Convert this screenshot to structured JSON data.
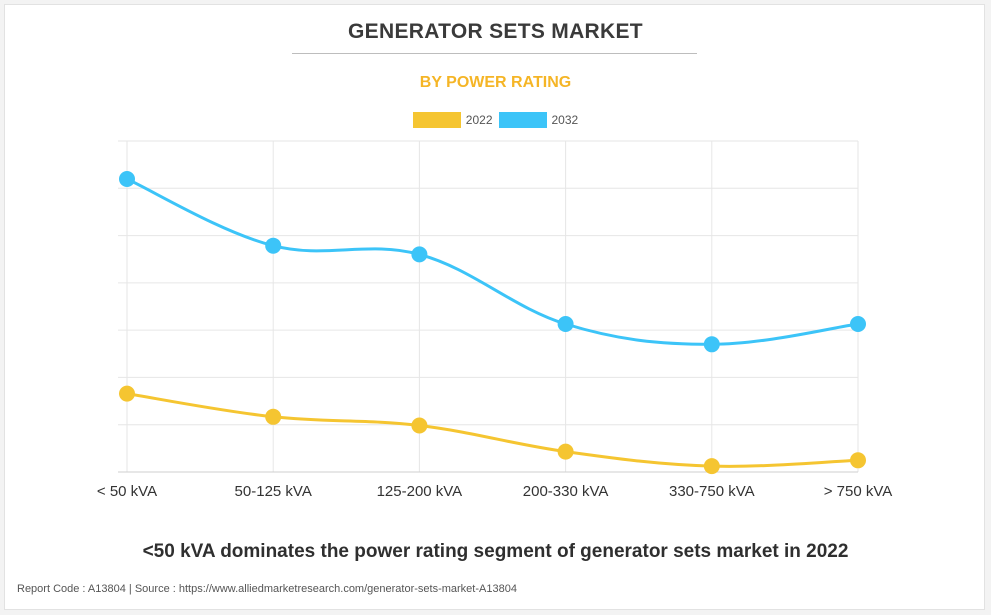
{
  "header": {
    "title": "GENERATOR SETS MARKET",
    "subtitle": "BY POWER RATING"
  },
  "colors": {
    "series_2022": "#f5c531",
    "series_2032": "#3cc4f8",
    "subtitle": "#f5b526"
  },
  "chart_data": {
    "type": "line",
    "title": "GENERATOR SETS MARKET",
    "subtitle": "BY POWER RATING",
    "xlabel": "",
    "ylabel": "",
    "ylim": [
      0,
      100
    ],
    "grid": true,
    "legend_position": "top-center",
    "categories": [
      "< 50 kVA",
      "50-125 kVA",
      "125-200 kVA",
      "200-330 kVA",
      "330-750 kVA",
      "> 750 kVA"
    ],
    "series": [
      {
        "name": "2022",
        "values": [
          26,
          18,
          15,
          6,
          1,
          3
        ]
      },
      {
        "name": "2032",
        "values": [
          100,
          77,
          74,
          50,
          43,
          50
        ]
      }
    ]
  },
  "caption": "<50 kVA dominates the power rating segment of generator sets market in 2022",
  "footer": {
    "report_code": "Report Code : A13804",
    "separator": "|",
    "source": "Source : https://www.alliedmarketresearch.com/generator-sets-market-A13804"
  }
}
